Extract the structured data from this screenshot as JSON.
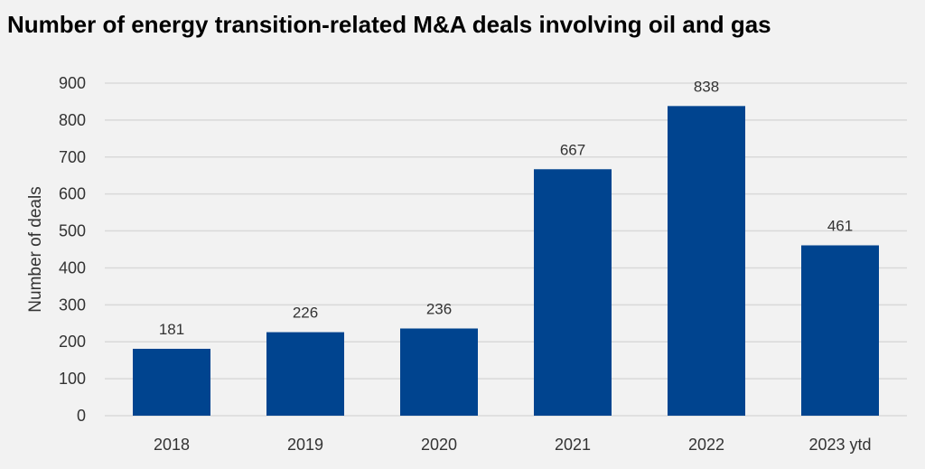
{
  "chart_data": {
    "type": "bar",
    "title": "Number of energy transition-related M&A deals involving oil and gas",
    "xlabel": "",
    "ylabel": "Number of deals",
    "categories": [
      "2018",
      "2019",
      "2020",
      "2021",
      "2022",
      "2023 ytd"
    ],
    "values": [
      181,
      226,
      236,
      667,
      838,
      461
    ],
    "ylim": [
      0,
      900
    ],
    "yticks": [
      0,
      100,
      200,
      300,
      400,
      500,
      600,
      700,
      800,
      900
    ],
    "grid": true,
    "legend": "none",
    "colors": {
      "bar": "#00448f",
      "grid": "#d9d9d9",
      "background": "#f2f2f2"
    }
  }
}
